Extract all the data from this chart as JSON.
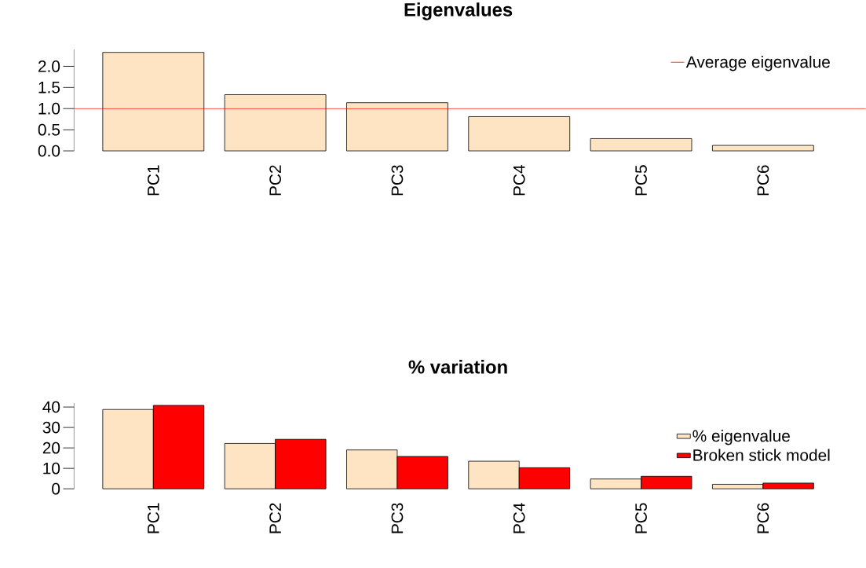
{
  "chart_data": [
    {
      "type": "bar",
      "title": "Eigenvalues",
      "categories": [
        "PC1",
        "PC2",
        "PC3",
        "PC4",
        "PC5",
        "PC6"
      ],
      "values": [
        2.33,
        1.33,
        1.14,
        0.81,
        0.29,
        0.13
      ],
      "color": "#ffe4c4",
      "ylim": [
        0,
        2.4
      ],
      "yticks": [
        {
          "value": 0,
          "label": "0.0"
        },
        {
          "value": 0.5,
          "label": "0.5"
        },
        {
          "value": 1,
          "label": "1.0"
        },
        {
          "value": 1.5,
          "label": "1.5"
        },
        {
          "value": 2,
          "label": "2.0"
        }
      ],
      "ref_lines": [
        {
          "axis": "y",
          "value": 1,
          "label": "Average eigenvalue",
          "color": "#ff0000"
        }
      ],
      "legend": "top right",
      "grid": false
    },
    {
      "type": "bar",
      "title": "% variation",
      "categories": [
        "PC1",
        "PC2",
        "PC3",
        "PC4",
        "PC5",
        "PC6"
      ],
      "series": [
        {
          "name": "% eigenvalue",
          "color": "#ffe4c4",
          "values": [
            38.8,
            22.2,
            19.0,
            13.5,
            4.8,
            2.2
          ]
        },
        {
          "name": "Broken stick model",
          "color": "#ff0000",
          "values": [
            40.8,
            24.2,
            15.8,
            10.3,
            6.1,
            2.8
          ]
        }
      ],
      "ylim": [
        0,
        42
      ],
      "yticks": [
        0,
        10,
        20,
        30,
        40
      ],
      "legend": "right",
      "grid": false
    }
  ]
}
